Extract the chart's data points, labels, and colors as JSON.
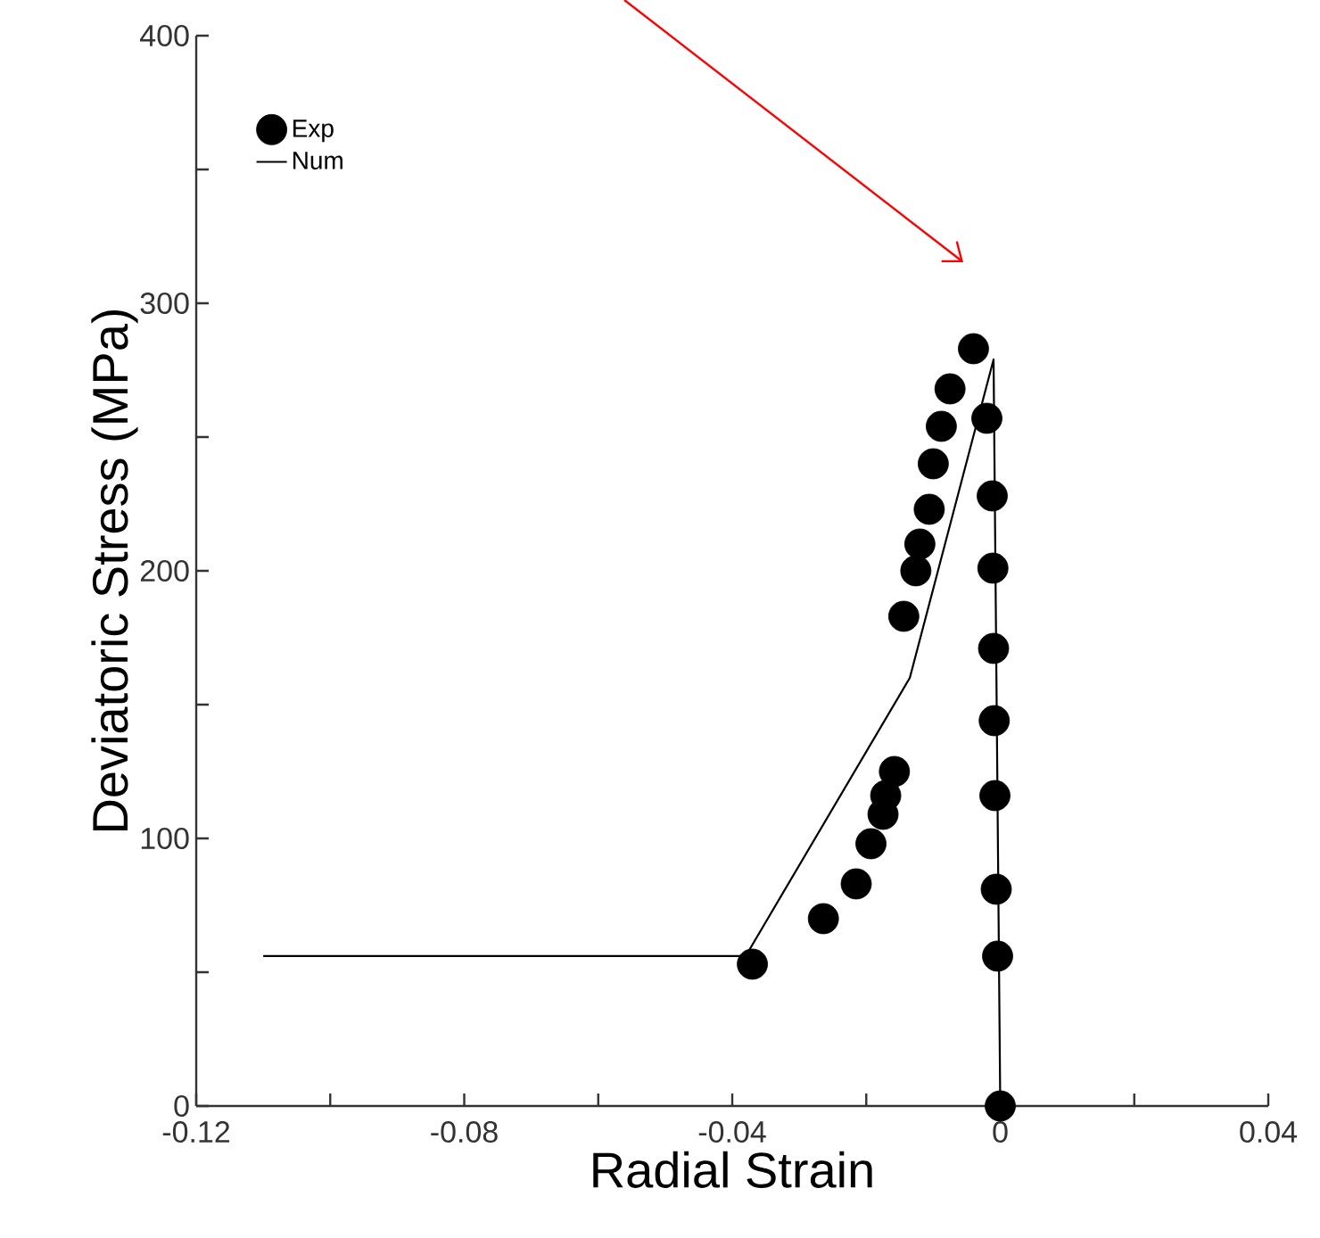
{
  "chart_data": {
    "type": "scatter",
    "xlabel": "Radial Strain",
    "ylabel": "Deviatoric Stress (MPa)",
    "xlim": [
      -0.12,
      0.04
    ],
    "ylim": [
      0,
      400
    ],
    "xticks": [
      -0.12,
      {
        "value": -0.1,
        "label": null
      },
      -0.08,
      {
        "value": -0.06,
        "label": null
      },
      -0.04,
      {
        "value": -0.02,
        "label": null
      },
      {
        "value": 0,
        "label": "0"
      },
      {
        "value": 0.02,
        "label": null
      },
      0.04
    ],
    "yticks": [
      0,
      {
        "value": 50,
        "label": null
      },
      100,
      {
        "value": 150,
        "label": null
      },
      200,
      {
        "value": 250,
        "label": null
      },
      300,
      {
        "value": 350,
        "label": null
      },
      400
    ],
    "grid": false,
    "legend": "top left",
    "series": [
      {
        "name": "Exp",
        "marker": "circle",
        "color": "#000000",
        "x": [
          -0.004,
          -0.0075,
          -0.0088,
          -0.01,
          -0.0106,
          -0.012,
          -0.0126,
          -0.0144,
          -0.0158,
          -0.0171,
          -0.0175,
          -0.0193,
          -0.0215,
          -0.0264,
          -0.037,
          -0.002,
          -0.0012,
          -0.0011,
          -0.001,
          -0.0009,
          -0.0008,
          -0.0006,
          -0.0004,
          0.0
        ],
        "values": [
          283,
          268,
          254,
          240,
          223,
          210,
          200,
          183,
          125,
          116,
          109,
          98,
          83,
          70,
          53,
          257,
          228,
          201,
          171,
          144,
          116,
          81,
          56,
          0
        ]
      },
      {
        "name": "Num",
        "type": "line",
        "marker": "none",
        "color": "#000000",
        "line_style": "solid",
        "x": [
          -0.11,
          -0.038,
          -0.0135,
          -0.001,
          0.0
        ],
        "values": [
          56,
          56,
          160,
          279,
          0
        ]
      }
    ]
  }
}
